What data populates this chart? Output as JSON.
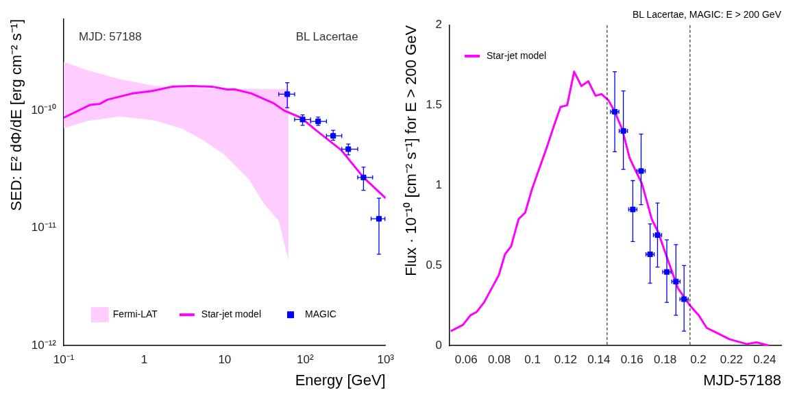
{
  "chart_data": [
    {
      "type": "line",
      "log": "xy",
      "xlabel": "Energy [GeV]",
      "ylabel": "SED: E² dΦ/dE [erg cm⁻² s⁻¹]",
      "xlim": [
        0.1,
        1000
      ],
      "ylim": [
        1e-12,
        6e-10
      ],
      "xticks": [
        {
          "value": 0.1,
          "label": "10⁻¹"
        },
        1,
        10,
        {
          "value": 100,
          "label": "10²"
        },
        {
          "value": 1000,
          "label": "10³"
        }
      ],
      "yticks": [
        {
          "value": 1e-12,
          "label": "10⁻¹²"
        },
        {
          "value": 1e-11,
          "label": "10⁻¹¹"
        },
        {
          "value": 1e-10,
          "label": "10⁻¹⁰"
        }
      ],
      "grid": false,
      "legend": "bottom",
      "annotations": [
        "MJD: 57188",
        "BL Lacertae"
      ],
      "series": [
        {
          "name": "Fermi-LAT",
          "type": "area",
          "color": "#ffccff",
          "x": [
            0.1,
            0.2,
            0.5,
            1.3,
            3,
            5.2,
            10,
            20,
            31,
            47,
            62
          ],
          "values": [
            null,
            null,
            null,
            null,
            null,
            null,
            null,
            null,
            null,
            null,
            null
          ],
          "lower": [
            7.1e-11,
            8.2e-11,
            8.9e-11,
            8.3e-11,
            7e-11,
            5.7e-11,
            4.2e-11,
            2.6e-11,
            1.6e-11,
            1.15e-11,
            5.3e-12
          ],
          "upper": [
            2.6e-10,
            2.2e-10,
            1.85e-10,
            1.63e-10,
            1.56e-10,
            1.55e-10,
            1.54e-10,
            1.53e-10,
            1.53e-10,
            1.53e-10,
            1.53e-10
          ]
        },
        {
          "name": "Star-jet model",
          "type": "line",
          "color": "#ff00ff",
          "marker": "none",
          "x": [
            0.1,
            0.214,
            0.28,
            0.35,
            0.716,
            1.26,
            2.23,
            3.94,
            6.95,
            11,
            13.2,
            21.5,
            41,
            55,
            89,
            137,
            282,
            531,
            1000
          ],
          "values": [
            8.7e-11,
            1.12e-10,
            1.14e-10,
            1.24e-10,
            1.4e-10,
            1.47e-10,
            1.6e-10,
            1.62e-10,
            1.6e-10,
            1.51e-10,
            1.52e-10,
            1.4e-10,
            1.15e-10,
            1e-10,
            8.7e-11,
            6.8e-11,
            4.6e-11,
            2.7e-11,
            1.8e-11
          ]
        },
        {
          "name": "MAGIC",
          "type": "scatter",
          "color": "#0000ff",
          "marker": "square",
          "x": [
            60,
            93,
            145,
            223,
            344,
            531,
            826
          ],
          "values": [
            1.38e-10,
            8.4e-11,
            8.1e-11,
            6.1e-11,
            4.7e-11,
            2.7e-11,
            1.2e-11
          ],
          "errors": [
            [
              1.06e-10,
              1.73e-10
            ],
            [
              7.5e-11,
              9.2e-11
            ],
            [
              7.5e-11,
              8.8e-11
            ],
            [
              5.6e-11,
              6.8e-11
            ],
            [
              4.2e-11,
              5.2e-11
            ],
            [
              2.1e-11,
              3.3e-11
            ],
            [
              6e-12,
              1.8e-11
            ]
          ],
          "xerrors": [
            [
              47,
              74
            ],
            [
              74,
              117
            ],
            [
              117,
              184
            ],
            [
              184,
              285
            ],
            [
              285,
              450
            ],
            [
              450,
              690
            ],
            [
              660,
              980
            ]
          ]
        }
      ]
    },
    {
      "type": "line",
      "title": "BL Lacertae, MAGIC: E > 200 GeV",
      "xlabel": "MJD-57188",
      "ylabel": "Flux · 10⁻¹⁰ [cm⁻² s⁻¹] for E > 200 GeV",
      "xlim": [
        0.05,
        0.25
      ],
      "ylim": [
        0,
        2
      ],
      "xticks": [
        0.06,
        0.08,
        0.1,
        0.12,
        0.14,
        0.16,
        0.18,
        0.2,
        0.22,
        0.24
      ],
      "yticks": [
        0,
        0.5,
        1,
        1.5,
        2
      ],
      "grid": false,
      "legend": "top left",
      "ref_lines": [
        {
          "axis": "x",
          "value": 0.145,
          "color": "#000000",
          "line_style": "dashed"
        },
        {
          "axis": "x",
          "value": 0.195,
          "color": "#000000",
          "line_style": "dashed"
        }
      ],
      "series": [
        {
          "name": "Star-jet model",
          "type": "line",
          "color": "#ff00ff",
          "marker": "none",
          "x": [
            0.0507,
            0.0581,
            0.0626,
            0.0663,
            0.0708,
            0.0797,
            0.0834,
            0.0871,
            0.0916,
            0.0956,
            0.0998,
            0.1087,
            0.1132,
            0.1169,
            0.1209,
            0.1251,
            0.1295,
            0.1337,
            0.138,
            0.1417,
            0.1459,
            0.1496,
            0.1541,
            0.1586,
            0.166,
            0.1682,
            0.1719,
            0.1757,
            0.1801,
            0.1876,
            0.195,
            0.2002,
            0.2051,
            0.2091,
            0.2188,
            0.2292,
            0.2351,
            0.2426
          ],
          "values": [
            0.09,
            0.13,
            0.19,
            0.21,
            0.27,
            0.44,
            0.57,
            0.62,
            0.79,
            0.83,
            0.98,
            1.24,
            1.38,
            1.49,
            1.5,
            1.71,
            1.62,
            1.65,
            1.56,
            1.57,
            1.53,
            1.46,
            1.35,
            1.17,
            1.01,
            0.93,
            0.79,
            0.71,
            0.58,
            0.36,
            0.25,
            0.19,
            0.11,
            0.09,
            0.04,
            0.01,
            0.02,
            0
          ]
        },
        {
          "type": "scatter",
          "color": "#0000ff",
          "marker": "square",
          "x": [
            0.1496,
            0.1548,
            0.1605,
            0.1655,
            0.1709,
            0.1754,
            0.181,
            0.1865,
            0.1914
          ],
          "values": [
            1.46,
            1.34,
            0.85,
            1.09,
            0.57,
            0.69,
            0.46,
            0.4,
            0.29
          ],
          "errors": [
            [
              1.21,
              1.71
            ],
            [
              1.1,
              1.59
            ],
            [
              0.65,
              1.03
            ],
            [
              0.88,
              1.32
            ],
            [
              0.39,
              0.76
            ],
            [
              0.49,
              0.89
            ],
            [
              0.27,
              0.66
            ],
            [
              0.19,
              0.63
            ],
            [
              0.09,
              0.5
            ]
          ],
          "xerrors": [
            [
              0.1471,
              0.1521
            ],
            [
              0.1523,
              0.1573
            ],
            [
              0.158,
              0.163
            ],
            [
              0.163,
              0.168
            ],
            [
              0.1684,
              0.1734
            ],
            [
              0.1729,
              0.1779
            ],
            [
              0.1785,
              0.1835
            ],
            [
              0.184,
              0.189
            ],
            [
              0.1889,
              0.1939
            ]
          ]
        }
      ]
    }
  ]
}
